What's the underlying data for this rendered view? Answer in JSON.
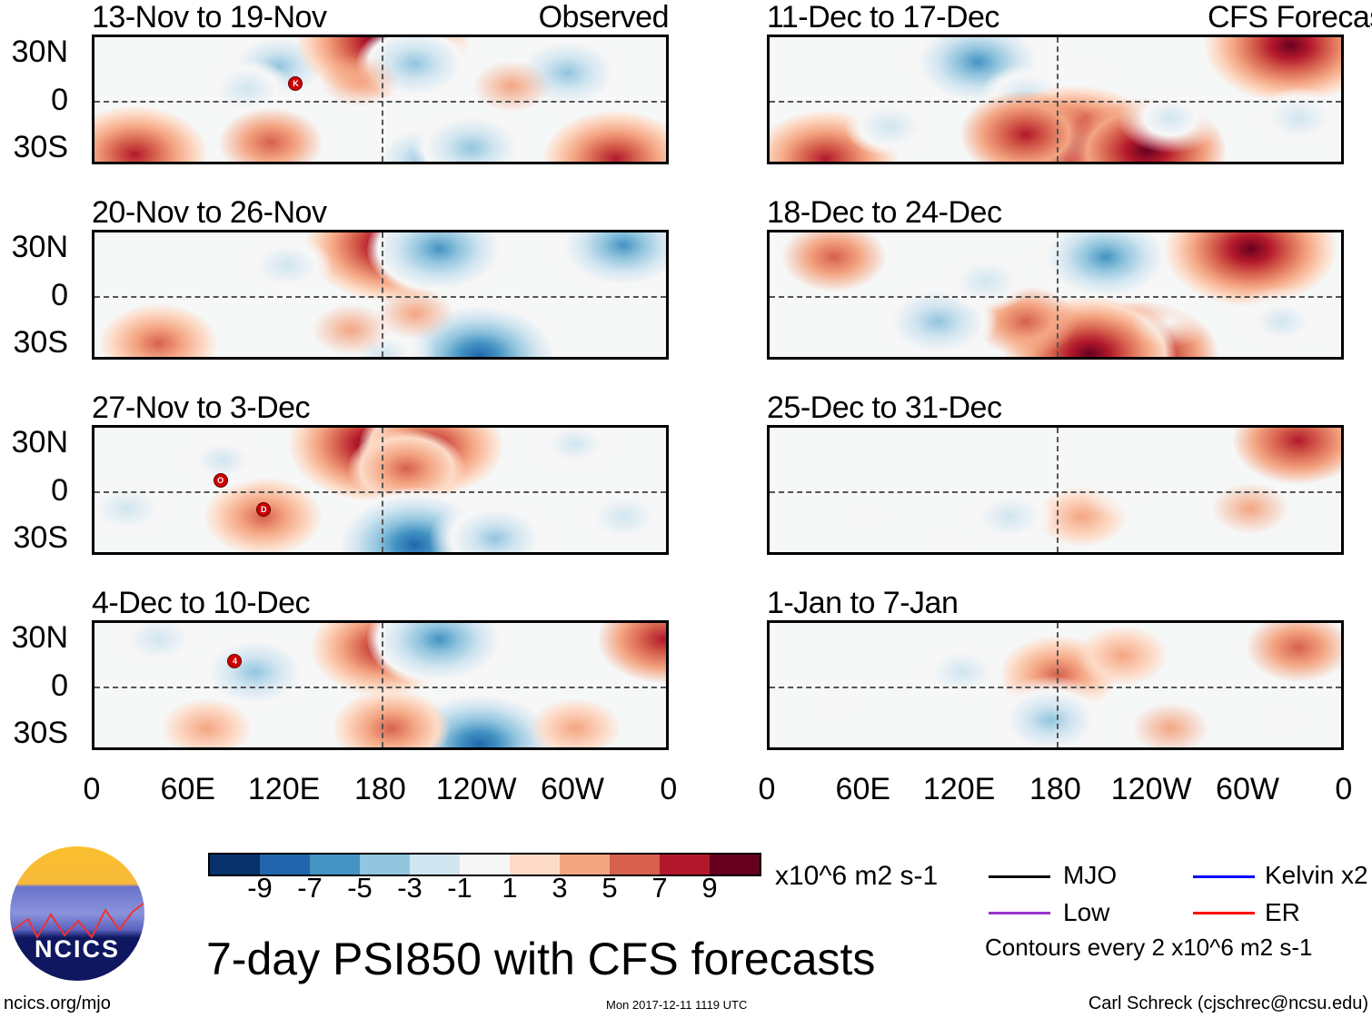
{
  "panels": [
    {
      "title": "13-Nov to 19-Nov",
      "label": "Observed",
      "blobs": [
        [
          115,
          22,
          -6
        ],
        [
          95,
          8,
          -3
        ],
        [
          180,
          38,
          9
        ],
        [
          200,
          24,
          -5
        ],
        [
          295,
          18,
          -5
        ],
        [
          25,
          -32,
          7
        ],
        [
          110,
          -25,
          4
        ],
        [
          205,
          -35,
          -6
        ],
        [
          235,
          -28,
          -5
        ],
        [
          325,
          -35,
          7
        ],
        [
          165,
          13,
          2
        ],
        [
          260,
          10,
          2
        ]
      ],
      "storms": [
        {
          "text": "K",
          "lon": 125,
          "lat": 12
        }
      ]
    },
    {
      "title": "20-Nov to 26-Nov",
      "label": "",
      "blobs": [
        [
          185,
          33,
          9
        ],
        [
          215,
          30,
          -7
        ],
        [
          330,
          32,
          -8
        ],
        [
          40,
          -28,
          5
        ],
        [
          240,
          -36,
          -9
        ],
        [
          180,
          -35,
          -4
        ],
        [
          120,
          20,
          -3
        ],
        [
          200,
          -10,
          2
        ],
        [
          160,
          -20,
          2
        ]
      ],
      "storms": []
    },
    {
      "title": "27-Nov to 3-Dec",
      "label": "",
      "blobs": [
        [
          175,
          30,
          9
        ],
        [
          210,
          28,
          7
        ],
        [
          195,
          15,
          5
        ],
        [
          105,
          -15,
          5
        ],
        [
          80,
          20,
          -4
        ],
        [
          200,
          -32,
          -9
        ],
        [
          250,
          -28,
          -6
        ],
        [
          300,
          30,
          -4
        ],
        [
          20,
          -10,
          -3
        ],
        [
          330,
          -15,
          -3
        ]
      ],
      "storms": [
        {
          "text": "O",
          "lon": 78,
          "lat": 8
        },
        {
          "text": "D",
          "lon": 105,
          "lat": -10
        }
      ]
    },
    {
      "title": "4-Dec to 10-Dec",
      "label": "",
      "blobs": [
        [
          180,
          25,
          7
        ],
        [
          215,
          30,
          -7
        ],
        [
          355,
          30,
          6
        ],
        [
          100,
          10,
          -5
        ],
        [
          240,
          -35,
          -9
        ],
        [
          185,
          -25,
          5
        ],
        [
          70,
          -25,
          3
        ],
        [
          300,
          -25,
          3
        ],
        [
          40,
          30,
          -3
        ]
      ],
      "storms": [
        {
          "text": "4",
          "lon": 87,
          "lat": 17
        }
      ]
    },
    {
      "title": "11-Dec to 17-Dec",
      "label": "CFS Forecast",
      "blobs": [
        [
          130,
          25,
          -8
        ],
        [
          160,
          5,
          -3
        ],
        [
          190,
          -25,
          9
        ],
        [
          235,
          -30,
          8
        ],
        [
          160,
          -20,
          6
        ],
        [
          325,
          35,
          9
        ],
        [
          35,
          -35,
          7
        ],
        [
          75,
          -15,
          -3
        ],
        [
          250,
          -10,
          -4
        ],
        [
          330,
          -10,
          -3
        ],
        [
          200,
          20,
          -2
        ]
      ],
      "storms": []
    },
    {
      "title": "18-Dec to 24-Dec",
      "label": "",
      "blobs": [
        [
          210,
          25,
          -8
        ],
        [
          300,
          30,
          9
        ],
        [
          40,
          25,
          4
        ],
        [
          230,
          -35,
          8
        ],
        [
          200,
          -35,
          9
        ],
        [
          160,
          -15,
          4
        ],
        [
          105,
          -15,
          -5
        ],
        [
          320,
          -15,
          -4
        ],
        [
          135,
          10,
          -3
        ],
        [
          250,
          -15,
          -2
        ]
      ],
      "storms": []
    },
    {
      "title": "25-Dec to 31-Dec",
      "label": "",
      "blobs": [
        [
          330,
          32,
          6
        ],
        [
          195,
          -15,
          3
        ],
        [
          150,
          -15,
          -3
        ],
        [
          110,
          -30,
          -2
        ],
        [
          300,
          -10,
          2
        ],
        [
          220,
          0,
          -2
        ],
        [
          60,
          -15,
          -2
        ]
      ],
      "storms": []
    },
    {
      "title": "1-Jan to 7-Jan",
      "label": "",
      "blobs": [
        [
          180,
          8,
          5
        ],
        [
          220,
          20,
          3
        ],
        [
          175,
          -20,
          -6
        ],
        [
          120,
          10,
          -3
        ],
        [
          330,
          25,
          4
        ],
        [
          250,
          -25,
          2
        ],
        [
          40,
          -10,
          -2
        ],
        [
          320,
          -20,
          -2
        ]
      ],
      "storms": []
    }
  ],
  "y_ticks": [
    "30N",
    "0",
    "30S"
  ],
  "x_ticks": [
    "0",
    "60E",
    "120E",
    "180",
    "120W",
    "60W",
    "0"
  ],
  "colorbar": {
    "colors": [
      "#08306b",
      "#2166ac",
      "#4393c3",
      "#92c5de",
      "#d1e5f0",
      "#f7f7f7",
      "#fddbc7",
      "#f4a582",
      "#d6604d",
      "#b2182b",
      "#67001f"
    ],
    "labels": [
      "-9",
      "-7",
      "-5",
      "-3",
      "-1",
      "1",
      "3",
      "5",
      "7",
      "9"
    ],
    "units": "x10^6 m2 s-1"
  },
  "legend": {
    "mjo": "MJO",
    "kelvin": "Kelvin x2",
    "low": "Low",
    "er": "ER",
    "contours": "Contours every 2 x10^6 m2 s-1",
    "colors": {
      "mjo": "#000000",
      "kelvin": "#0000ff",
      "low": "#9933cc",
      "er": "#ff0000"
    }
  },
  "title": "7-day PSI850 with CFS forecasts",
  "logo": "NCICS",
  "footer": {
    "url": "ncics.org/mjo",
    "timestamp": "Mon 2017-12-11 1119 UTC",
    "author": "Carl Schreck (cjschrec@ncsu.edu)"
  }
}
